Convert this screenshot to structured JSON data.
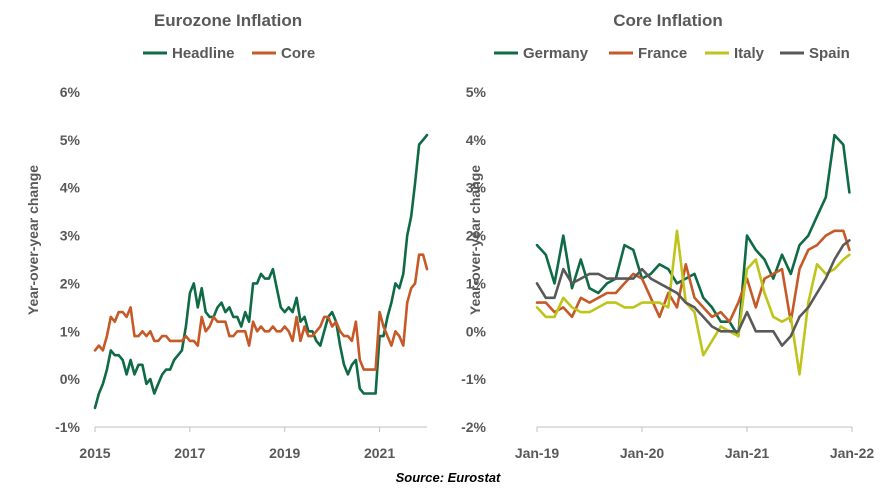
{
  "source": "Source: Eurostat",
  "chart_data": [
    {
      "type": "line",
      "title": "Eurozone Inflation",
      "ylabel": "Year-over-year change",
      "xlabel": "",
      "ylim": [
        -1,
        6
      ],
      "yticks": [
        "-1%",
        "0%",
        "1%",
        "2%",
        "3%",
        "4%",
        "5%",
        "6%"
      ],
      "xlim": [
        2015.0,
        2022.0
      ],
      "xticks": [
        "2015",
        "2017",
        "2019",
        "2021"
      ],
      "xtick_values": [
        2015,
        2017,
        2019,
        2021
      ],
      "grid": false,
      "legend": "top",
      "series": [
        {
          "name": "Headline",
          "color": "#0e6b45",
          "x": [
            2015.0,
            2015.083,
            2015.167,
            2015.25,
            2015.333,
            2015.417,
            2015.5,
            2015.583,
            2015.667,
            2015.75,
            2015.833,
            2015.917,
            2016.0,
            2016.083,
            2016.167,
            2016.25,
            2016.333,
            2016.417,
            2016.5,
            2016.583,
            2016.667,
            2016.75,
            2016.833,
            2016.917,
            2017.0,
            2017.083,
            2017.167,
            2017.25,
            2017.333,
            2017.417,
            2017.5,
            2017.583,
            2017.667,
            2017.75,
            2017.833,
            2017.917,
            2018.0,
            2018.083,
            2018.167,
            2018.25,
            2018.333,
            2018.417,
            2018.5,
            2018.583,
            2018.667,
            2018.75,
            2018.833,
            2018.917,
            2019.0,
            2019.083,
            2019.167,
            2019.25,
            2019.333,
            2019.417,
            2019.5,
            2019.583,
            2019.667,
            2019.75,
            2019.833,
            2019.917,
            2020.0,
            2020.083,
            2020.167,
            2020.25,
            2020.333,
            2020.417,
            2020.5,
            2020.583,
            2020.667,
            2020.75,
            2020.833,
            2020.917,
            2021.0,
            2021.083,
            2021.167,
            2021.25,
            2021.333,
            2021.417,
            2021.5,
            2021.583,
            2021.667,
            2021.75,
            2021.833,
            2021.917
          ],
          "values": [
            -0.6,
            -0.3,
            -0.1,
            0.2,
            0.6,
            0.5,
            0.5,
            0.4,
            0.1,
            0.4,
            0.1,
            0.3,
            0.3,
            -0.1,
            0.0,
            -0.3,
            -0.1,
            0.1,
            0.2,
            0.2,
            0.4,
            0.5,
            0.6,
            1.1,
            1.8,
            2.0,
            1.5,
            1.9,
            1.4,
            1.3,
            1.3,
            1.5,
            1.6,
            1.4,
            1.5,
            1.3,
            1.3,
            1.1,
            1.4,
            1.2,
            2.0,
            2.0,
            2.2,
            2.1,
            2.1,
            2.3,
            1.9,
            1.5,
            1.4,
            1.5,
            1.4,
            1.7,
            1.2,
            1.3,
            1.0,
            1.0,
            0.8,
            0.7,
            1.0,
            1.3,
            1.4,
            1.2,
            0.7,
            0.3,
            0.1,
            0.3,
            0.4,
            -0.2,
            -0.3,
            -0.3,
            -0.3,
            -0.3,
            0.9,
            0.9,
            1.3,
            1.6,
            2.0,
            1.9,
            2.2,
            3.0,
            3.4,
            4.1,
            4.9,
            5.0
          ],
          "end": [
            2022.0,
            5.1
          ]
        },
        {
          "name": "Core",
          "color": "#c55a28",
          "x": [
            2015.0,
            2015.083,
            2015.167,
            2015.25,
            2015.333,
            2015.417,
            2015.5,
            2015.583,
            2015.667,
            2015.75,
            2015.833,
            2015.917,
            2016.0,
            2016.083,
            2016.167,
            2016.25,
            2016.333,
            2016.417,
            2016.5,
            2016.583,
            2016.667,
            2016.75,
            2016.833,
            2016.917,
            2017.0,
            2017.083,
            2017.167,
            2017.25,
            2017.333,
            2017.417,
            2017.5,
            2017.583,
            2017.667,
            2017.75,
            2017.833,
            2017.917,
            2018.0,
            2018.083,
            2018.167,
            2018.25,
            2018.333,
            2018.417,
            2018.5,
            2018.583,
            2018.667,
            2018.75,
            2018.833,
            2018.917,
            2019.0,
            2019.083,
            2019.167,
            2019.25,
            2019.333,
            2019.417,
            2019.5,
            2019.583,
            2019.667,
            2019.75,
            2019.833,
            2019.917,
            2020.0,
            2020.083,
            2020.167,
            2020.25,
            2020.333,
            2020.417,
            2020.5,
            2020.583,
            2020.667,
            2020.75,
            2020.833,
            2020.917,
            2021.0,
            2021.083,
            2021.167,
            2021.25,
            2021.333,
            2021.417,
            2021.5,
            2021.583,
            2021.667,
            2021.75,
            2021.833,
            2021.917
          ],
          "values": [
            0.6,
            0.7,
            0.6,
            0.9,
            1.3,
            1.2,
            1.4,
            1.4,
            1.3,
            1.5,
            0.9,
            0.9,
            1.0,
            0.9,
            1.0,
            0.8,
            0.8,
            0.9,
            0.9,
            0.8,
            0.8,
            0.8,
            0.8,
            0.9,
            0.8,
            0.8,
            0.7,
            1.3,
            1.0,
            1.1,
            1.3,
            1.2,
            1.2,
            1.2,
            0.9,
            0.9,
            1.0,
            1.0,
            1.0,
            0.7,
            1.2,
            1.0,
            1.1,
            1.0,
            1.0,
            1.1,
            1.0,
            1.0,
            1.1,
            1.0,
            0.8,
            1.3,
            0.8,
            1.1,
            0.9,
            0.9,
            1.0,
            1.1,
            1.3,
            1.3,
            1.1,
            1.2,
            1.0,
            0.9,
            0.9,
            0.8,
            1.2,
            0.4,
            0.2,
            0.2,
            0.2,
            0.2,
            1.4,
            1.1,
            0.9,
            0.7,
            1.0,
            0.9,
            0.7,
            1.6,
            1.9,
            2.0,
            2.6,
            2.6
          ],
          "end": [
            2022.0,
            2.3
          ]
        }
      ]
    },
    {
      "type": "line",
      "title": "Core Inflation",
      "ylabel": "Year-over-year change",
      "xlabel": "",
      "ylim": [
        -2,
        5
      ],
      "yticks": [
        "-2%",
        "-1%",
        "0%",
        "1%",
        "2%",
        "3%",
        "4%",
        "5%"
      ],
      "xlim": [
        0,
        36
      ],
      "xticks": [
        "Jan-19",
        "Jan-20",
        "Jan-21",
        "Jan-22"
      ],
      "xtick_values": [
        0,
        12,
        24,
        36
      ],
      "grid": false,
      "legend": "top",
      "series": [
        {
          "name": "Germany",
          "color": "#0e6b45",
          "x": [
            0,
            1,
            2,
            3,
            4,
            5,
            6,
            7,
            8,
            9,
            10,
            11,
            12,
            13,
            14,
            15,
            16,
            17,
            18,
            19,
            20,
            21,
            22,
            23,
            24,
            25,
            26,
            27,
            28,
            29,
            30,
            31,
            32,
            33,
            34,
            35
          ],
          "values": [
            1.8,
            1.6,
            1.0,
            2.0,
            0.9,
            1.5,
            0.9,
            0.8,
            1.0,
            1.1,
            1.8,
            1.7,
            1.1,
            1.2,
            1.4,
            1.3,
            1.0,
            1.1,
            1.2,
            0.7,
            0.5,
            0.2,
            0.2,
            -0.1,
            2.0,
            1.7,
            1.5,
            1.1,
            1.6,
            1.2,
            1.8,
            2.0,
            2.4,
            2.8,
            4.1,
            3.9
          ],
          "end": [
            35.7,
            2.9
          ]
        },
        {
          "name": "France",
          "color": "#c55a28",
          "x": [
            0,
            1,
            2,
            3,
            4,
            5,
            6,
            7,
            8,
            9,
            10,
            11,
            12,
            13,
            14,
            15,
            16,
            17,
            18,
            19,
            20,
            21,
            22,
            23,
            24,
            25,
            26,
            27,
            28,
            29,
            30,
            31,
            32,
            33,
            34,
            35
          ],
          "values": [
            0.6,
            0.6,
            0.4,
            0.5,
            0.3,
            0.7,
            0.6,
            0.7,
            0.8,
            0.8,
            1.0,
            1.2,
            1.1,
            0.7,
            0.3,
            0.8,
            0.5,
            1.4,
            0.7,
            0.5,
            0.3,
            0.4,
            0.2,
            0.6,
            1.1,
            0.5,
            1.1,
            1.2,
            1.3,
            0.2,
            1.3,
            1.7,
            1.8,
            2.0,
            2.1,
            2.1
          ],
          "end": [
            35.7,
            1.7
          ]
        },
        {
          "name": "Italy",
          "color": "#bfc41a",
          "x": [
            0,
            1,
            2,
            3,
            4,
            5,
            6,
            7,
            8,
            9,
            10,
            11,
            12,
            13,
            14,
            15,
            16,
            17,
            18,
            19,
            20,
            21,
            22,
            23,
            24,
            25,
            26,
            27,
            28,
            29,
            30,
            31,
            32,
            33,
            34,
            35
          ],
          "values": [
            0.5,
            0.3,
            0.3,
            0.7,
            0.5,
            0.4,
            0.4,
            0.5,
            0.6,
            0.6,
            0.5,
            0.5,
            0.6,
            0.6,
            0.6,
            0.5,
            2.1,
            0.6,
            0.4,
            -0.5,
            -0.2,
            0.1,
            0.0,
            -0.1,
            1.3,
            1.5,
            0.8,
            0.3,
            0.2,
            0.3,
            -0.9,
            0.6,
            1.4,
            1.2,
            1.3,
            1.5
          ],
          "end": [
            35.7,
            1.6
          ]
        },
        {
          "name": "Spain",
          "color": "#595959",
          "x": [
            0,
            1,
            2,
            3,
            4,
            5,
            6,
            7,
            8,
            9,
            10,
            11,
            12,
            13,
            14,
            15,
            16,
            17,
            18,
            19,
            20,
            21,
            22,
            23,
            24,
            25,
            26,
            27,
            28,
            29,
            30,
            31,
            32,
            33,
            34,
            35
          ],
          "values": [
            1.0,
            0.7,
            0.7,
            1.3,
            1.0,
            1.1,
            1.2,
            1.2,
            1.1,
            1.1,
            1.1,
            1.1,
            1.3,
            1.1,
            1.0,
            0.9,
            0.8,
            0.6,
            0.5,
            0.3,
            0.1,
            0.0,
            0.0,
            0.0,
            0.4,
            0.0,
            0.0,
            0.0,
            -0.3,
            -0.1,
            0.3,
            0.5,
            0.8,
            1.1,
            1.5,
            1.8
          ],
          "end": [
            35.7,
            1.9
          ]
        }
      ]
    }
  ]
}
